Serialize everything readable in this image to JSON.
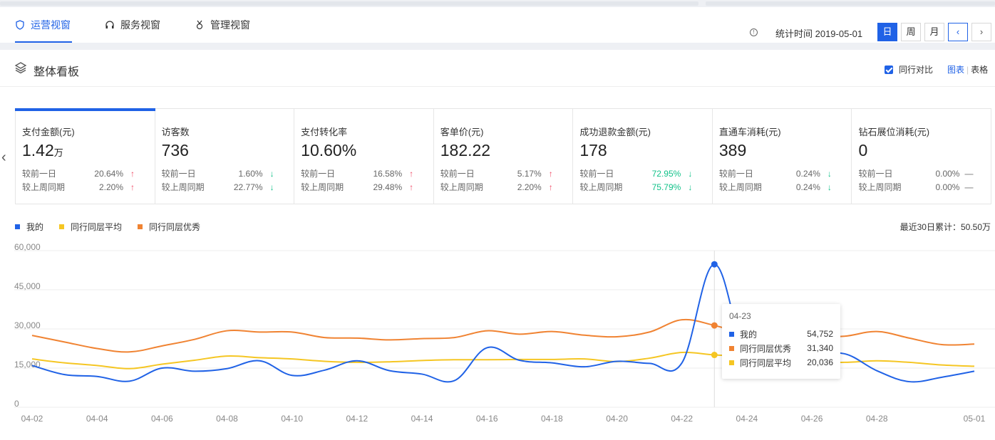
{
  "tabs": [
    {
      "label": "运营视窗",
      "active": true,
      "icon": "shield-icon"
    },
    {
      "label": "服务视窗",
      "active": false,
      "icon": "headset-icon"
    },
    {
      "label": "管理视窗",
      "active": false,
      "icon": "medal-icon"
    }
  ],
  "header": {
    "stat_time": "统计时间 2019-05-01",
    "periods": [
      "日",
      "周",
      "月"
    ],
    "active_period": "日"
  },
  "panel": {
    "title": "整体看板",
    "compare_label": "同行对比",
    "compare_checked": true,
    "view_chart": "图表",
    "view_table": "表格",
    "view_sep": "|"
  },
  "kpis": [
    {
      "title": "支付金额(元)",
      "value": "1.42",
      "unit": "万",
      "d_label": "较前一日",
      "d_pct": "20.64%",
      "d_dir": "up",
      "w_label": "较上周同期",
      "w_pct": "2.20%",
      "w_dir": "up"
    },
    {
      "title": "访客数",
      "value": "736",
      "unit": "",
      "d_label": "较前一日",
      "d_pct": "1.60%",
      "d_dir": "down",
      "w_label": "较上周同期",
      "w_pct": "22.77%",
      "w_dir": "down"
    },
    {
      "title": "支付转化率",
      "value": "10.60%",
      "unit": "",
      "d_label": "较前一日",
      "d_pct": "16.58%",
      "d_dir": "up",
      "w_label": "较上周同期",
      "w_pct": "29.48%",
      "w_dir": "up"
    },
    {
      "title": "客单价(元)",
      "value": "182.22",
      "unit": "",
      "d_label": "较前一日",
      "d_pct": "5.17%",
      "d_dir": "up",
      "w_label": "较上周同期",
      "w_pct": "2.20%",
      "w_dir": "up"
    },
    {
      "title": "成功退款金额(元)",
      "value": "178",
      "unit": "",
      "d_label": "较前一日",
      "d_pct": "72.95%",
      "d_dir": "down",
      "w_label": "较上周同期",
      "w_pct": "75.79%",
      "w_dir": "down"
    },
    {
      "title": "直通车消耗(元)",
      "value": "389",
      "unit": "",
      "d_label": "较前一日",
      "d_pct": "0.24%",
      "d_dir": "down",
      "w_label": "较上周同期",
      "w_pct": "0.24%",
      "w_dir": "down"
    },
    {
      "title": "钻石展位消耗(元)",
      "value": "0",
      "unit": "",
      "d_label": "较前一日",
      "d_pct": "0.00%",
      "d_dir": "flat",
      "w_label": "较上周同期",
      "w_pct": "0.00%",
      "w_dir": "flat"
    }
  ],
  "cumulative": "最近30日累计：50.50万",
  "colors": {
    "mine": "#2062e6",
    "avg": "#f5c623",
    "best": "#f08332",
    "up": "#f04864",
    "down": "#13c28a"
  },
  "chart_data": {
    "type": "line",
    "ylim": [
      0,
      60000
    ],
    "yticks": [
      "60,000",
      "45,000",
      "30,000",
      "15,000",
      "0"
    ],
    "ytick_values": [
      60000,
      45000,
      30000,
      15000,
      0
    ],
    "x": [
      "04-02",
      "04-03",
      "04-04",
      "04-05",
      "04-06",
      "04-07",
      "04-08",
      "04-09",
      "04-10",
      "04-11",
      "04-12",
      "04-13",
      "04-14",
      "04-15",
      "04-16",
      "04-17",
      "04-18",
      "04-19",
      "04-20",
      "04-21",
      "04-22",
      "04-23",
      "04-24",
      "04-25",
      "04-26",
      "04-27",
      "04-28",
      "04-29",
      "04-30",
      "05-01"
    ],
    "xtick_labels": [
      "04-02",
      "04-04",
      "04-06",
      "04-08",
      "04-10",
      "04-12",
      "04-14",
      "04-16",
      "04-18",
      "04-20",
      "04-22",
      "04-24",
      "04-26",
      "04-28",
      "05-01"
    ],
    "series": [
      {
        "name": "我的",
        "key": "mine",
        "values": [
          16000,
          12500,
          11800,
          10000,
          15000,
          13800,
          14800,
          17800,
          12200,
          14200,
          17800,
          14000,
          12700,
          10200,
          22800,
          18000,
          17000,
          15500,
          17600,
          16800,
          17000,
          54752,
          18000,
          17000,
          19500,
          20500,
          14000,
          9800,
          11500,
          13800
        ]
      },
      {
        "name": "同行同层平均",
        "key": "avg",
        "values": [
          18500,
          17000,
          16000,
          14800,
          16500,
          18000,
          19600,
          19000,
          18500,
          17600,
          17200,
          17400,
          17900,
          18200,
          18200,
          18300,
          18300,
          18500,
          17500,
          18800,
          21000,
          20036,
          19500,
          18000,
          17500,
          17200,
          17800,
          17200,
          16200,
          15700
        ]
      },
      {
        "name": "同行同层优秀",
        "key": "best",
        "values": [
          27500,
          25000,
          22500,
          21200,
          23500,
          26000,
          29300,
          28800,
          28800,
          26700,
          26500,
          25800,
          26300,
          26700,
          29300,
          28000,
          29000,
          27600,
          27000,
          28800,
          33500,
          31340,
          28000,
          26500,
          27000,
          27200,
          29000,
          26500,
          24000,
          24200
        ]
      }
    ],
    "tooltip": {
      "date": "04-23",
      "rows": [
        {
          "name": "我的",
          "value": "54,752",
          "key": "mine"
        },
        {
          "name": "同行同层优秀",
          "value": "31,340",
          "key": "best"
        },
        {
          "name": "同行同层平均",
          "value": "20,036",
          "key": "avg"
        }
      ]
    },
    "highlight_index": 21
  }
}
